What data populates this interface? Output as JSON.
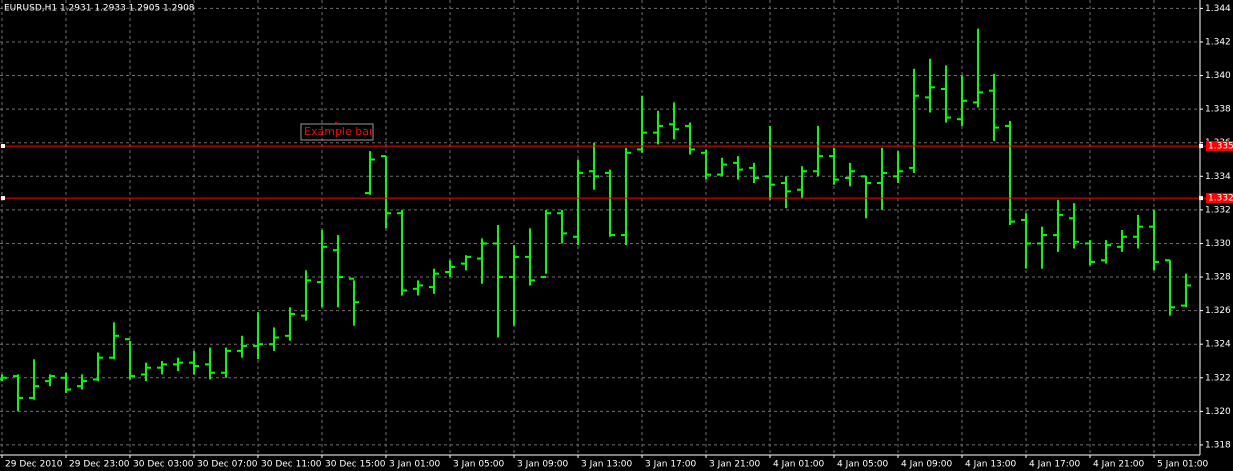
{
  "chart_data": {
    "type": "ohlc",
    "title": "EURUSD,H1  1.2931 1.2933 1.2905 1.2908",
    "annotation": "Example bar",
    "categories": [
      "29 Dec 2010",
      null,
      null,
      null,
      "29 Dec 23:00",
      null,
      null,
      null,
      "30 Dec 03:00",
      null,
      null,
      null,
      "30 Dec 07:00",
      null,
      null,
      null,
      "30 Dec 11:00",
      null,
      null,
      null,
      "30 Dec 15:00",
      null,
      null,
      null,
      "3 Jan 01:00",
      null,
      null,
      null,
      "3 Jan 05:00",
      null,
      null,
      null,
      "3 Jan 09:00",
      null,
      null,
      null,
      "3 Jan 13:00",
      null,
      null,
      null,
      "3 Jan 17:00",
      null,
      null,
      null,
      "3 Jan 21:00",
      null,
      null,
      null,
      "4 Jan 01:00",
      null,
      null,
      null,
      "4 Jan 05:00",
      null,
      null,
      null,
      "4 Jan 09:00",
      null,
      null,
      null,
      "4 Jan 13:00",
      null,
      null,
      null,
      "4 Jan 17:00",
      null,
      null,
      null,
      "4 Jan 21:00",
      null,
      null,
      null,
      "5 Jan 01:00",
      null,
      null
    ],
    "color": "#00ff00",
    "open": [
      1.3219,
      1.3221,
      1.3208,
      1.3218,
      1.322,
      1.3215,
      1.3219,
      1.3232,
      1.3243,
      1.3222,
      1.3226,
      1.3228,
      1.3229,
      1.3228,
      1.3223,
      1.3236,
      1.3239,
      1.324,
      1.3245,
      1.3257,
      1.3277,
      1.3296,
      1.3279,
      1.333,
      1.3352,
      1.3318,
      1.3273,
      1.3274,
      1.3283,
      1.3288,
      1.3291,
      1.33,
      1.328,
      1.3292,
      1.328,
      1.3318,
      1.3304,
      1.3343,
      1.3342,
      1.3305,
      1.3356,
      1.3366,
      1.3371,
      1.337,
      1.3354,
      1.3341,
      1.3348,
      1.3345,
      1.334,
      1.3336,
      1.3332,
      1.3343,
      1.3352,
      1.3339,
      1.334,
      1.3336,
      1.334,
      1.3345,
      1.3387,
      1.3392,
      1.3374,
      1.3384,
      1.3391,
      1.337,
      1.3314,
      1.33,
      1.3305,
      1.3315,
      1.33,
      1.329,
      1.3298,
      1.3304,
      1.331,
      1.329,
      1.3263
    ],
    "high": [
      1.3222,
      1.3222,
      1.3231,
      1.3222,
      1.3223,
      1.3222,
      1.3235,
      1.3253,
      1.3242,
      1.3229,
      1.323,
      1.3232,
      1.3236,
      1.3238,
      1.3238,
      1.3245,
      1.3259,
      1.325,
      1.3262,
      1.3284,
      1.3308,
      1.3305,
      1.3278,
      1.3355,
      1.3352,
      1.332,
      1.3278,
      1.3285,
      1.329,
      1.3293,
      1.3303,
      1.3311,
      1.3299,
      1.3309,
      1.332,
      1.332,
      1.335,
      1.336,
      1.3344,
      1.3357,
      1.3388,
      1.3379,
      1.3384,
      1.3372,
      1.3356,
      1.3351,
      1.3352,
      1.3348,
      1.337,
      1.334,
      1.3346,
      1.337,
      1.3357,
      1.3348,
      1.334,
      1.3357,
      1.3355,
      1.3404,
      1.341,
      1.3406,
      1.34,
      1.3428,
      1.3401,
      1.3373,
      1.3318,
      1.331,
      1.3326,
      1.3324,
      1.3302,
      1.3302,
      1.3308,
      1.3317,
      1.332,
      1.329,
      1.3282
    ],
    "low": [
      1.3218,
      1.32,
      1.3207,
      1.3215,
      1.3211,
      1.3213,
      1.3218,
      1.3231,
      1.3219,
      1.3218,
      1.3222,
      1.3224,
      1.3222,
      1.3219,
      1.322,
      1.3232,
      1.3231,
      1.3236,
      1.3242,
      1.3254,
      1.3262,
      1.3262,
      1.3251,
      1.3329,
      1.3309,
      1.3269,
      1.3269,
      1.327,
      1.328,
      1.3284,
      1.3276,
      1.3244,
      1.3251,
      1.3275,
      1.3282,
      1.33,
      1.3299,
      1.3332,
      1.3304,
      1.3299,
      1.3354,
      1.3359,
      1.3362,
      1.3353,
      1.3338,
      1.334,
      1.3338,
      1.3336,
      1.3326,
      1.3321,
      1.3327,
      1.334,
      1.3335,
      1.3334,
      1.3315,
      1.332,
      1.3336,
      1.3342,
      1.3378,
      1.3372,
      1.337,
      1.3381,
      1.3361,
      1.3311,
      1.3285,
      1.3285,
      1.3295,
      1.3297,
      1.3287,
      1.3288,
      1.3295,
      1.3297,
      1.3284,
      1.3257,
      1.3262
    ],
    "close": [
      1.322,
      1.3208,
      1.3215,
      1.3221,
      1.3213,
      1.3218,
      1.3232,
      1.3245,
      1.3221,
      1.3226,
      1.3228,
      1.3229,
      1.3227,
      1.3223,
      1.3236,
      1.3239,
      1.324,
      1.3244,
      1.3258,
      1.3278,
      1.3298,
      1.328,
      1.3265,
      1.335,
      1.3318,
      1.3272,
      1.3275,
      1.3282,
      1.3286,
      1.3292,
      1.33,
      1.328,
      1.3292,
      1.3278,
      1.3318,
      1.3306,
      1.3342,
      1.334,
      1.3305,
      1.3354,
      1.3366,
      1.337,
      1.3368,
      1.3356,
      1.3341,
      1.3347,
      1.3344,
      1.3339,
      1.3335,
      1.3331,
      1.3343,
      1.3352,
      1.3338,
      1.3343,
      1.3336,
      1.3342,
      1.3343,
      1.3388,
      1.3393,
      1.3375,
      1.3385,
      1.339,
      1.3369,
      1.3313,
      1.33,
      1.3305,
      1.3317,
      1.3301,
      1.3289,
      1.3299,
      1.3304,
      1.331,
      1.3289,
      1.3262,
      1.3275
    ],
    "hlines": [
      {
        "value": 1.3358,
        "color": "#ff0000"
      },
      {
        "value": 1.3327,
        "color": "#ff0000"
      }
    ],
    "ylim": [
      1.3174,
      1.3445
    ],
    "yticks": [
      1.318,
      {
        "value": 1.32,
        "label": "1.320"
      },
      1.322,
      1.324,
      1.326,
      1.328,
      {
        "value": 1.33,
        "label": "1.330"
      },
      1.332,
      1.334,
      1.336,
      1.338,
      {
        "value": 1.34,
        "label": "1.340"
      },
      1.342,
      1.344
    ],
    "grid": true
  }
}
